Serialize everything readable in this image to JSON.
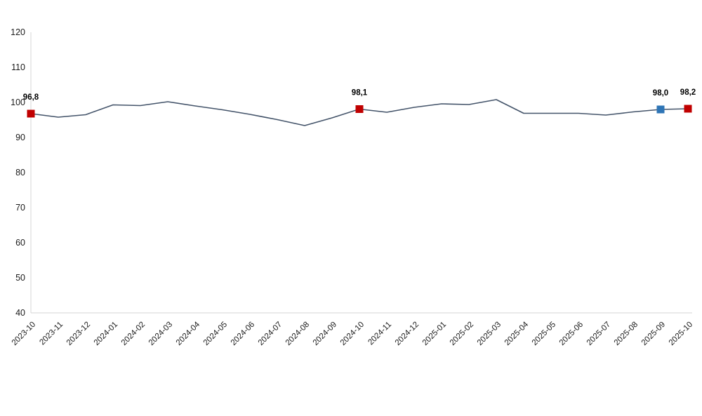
{
  "chart_data": {
    "type": "line",
    "x": [
      "2023-10",
      "2023-11",
      "2023-12",
      "2024-01",
      "2024-02",
      "2024-03",
      "2024-04",
      "2024-05",
      "2024-06",
      "2024-07",
      "2024-08",
      "2024-09",
      "2024-10",
      "2024-11",
      "2024-12",
      "2025-01",
      "2025-02",
      "2025-03",
      "2025-04",
      "2025-05",
      "2025-06",
      "2025-07",
      "2025-08",
      "2025-09",
      "2025-10"
    ],
    "values": [
      96.8,
      95.8,
      96.5,
      99.3,
      99.1,
      100.2,
      99.0,
      97.9,
      96.6,
      95.1,
      93.4,
      95.6,
      98.1,
      97.2,
      98.6,
      99.6,
      99.4,
      100.8,
      96.9,
      96.9,
      96.9,
      96.4,
      97.3,
      98.0,
      98.2
    ],
    "ylim": [
      40,
      120
    ],
    "yticks": [
      "40",
      "50",
      "60",
      "70",
      "80",
      "90",
      "100",
      "110",
      "120"
    ],
    "grid": false,
    "legend": "none",
    "line_color": "#44546a",
    "axis_color": "#d6d6d6",
    "highlighted_points": [
      {
        "x": "2023-10",
        "value": 96.8,
        "label": "96,8",
        "color": "#c00000"
      },
      {
        "x": "2024-10",
        "value": 98.1,
        "label": "98,1",
        "color": "#c00000"
      },
      {
        "x": "2025-09",
        "value": 98.0,
        "label": "98,0",
        "color": "#2e75b6"
      },
      {
        "x": "2025-10",
        "value": 98.2,
        "label": "98,2",
        "color": "#c00000"
      }
    ]
  }
}
